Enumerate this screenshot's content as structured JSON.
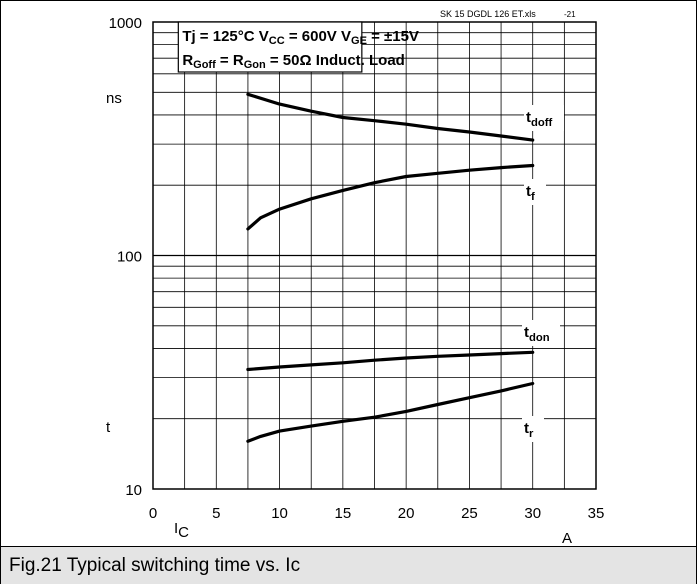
{
  "chart_data": {
    "type": "line",
    "file_label": "SK 15 DGDL 126 ET.xls",
    "fig_number": "-21",
    "conditions": {
      "line1": [
        "Tj = 125°C",
        "V",
        "CC",
        " = 600V",
        "V",
        "GE",
        " = ±15V"
      ],
      "line2": [
        "R",
        "Goff",
        " = R",
        "Gon",
        " = 50Ω",
        "Induct. Load"
      ]
    },
    "ylabel_unit": "ns",
    "ylabel_symbol": "t",
    "xlabel_symbol": "I",
    "xlabel_sub": "C",
    "xlabel_unit": "A",
    "x_ticks": [
      0,
      5,
      10,
      15,
      20,
      25,
      30,
      35
    ],
    "y_ticks": [
      10,
      100,
      1000
    ],
    "xlim": [
      0,
      35
    ],
    "ylim": [
      10,
      1000
    ],
    "yscale": "log",
    "grid": true,
    "series": [
      {
        "name": "t_doff",
        "label_main": "t",
        "label_sub": "doff",
        "x": [
          7.5,
          10,
          12.5,
          15,
          17.5,
          20,
          22.5,
          25,
          27.5,
          30
        ],
        "y": [
          490,
          445,
          415,
          390,
          378,
          365,
          350,
          338,
          325,
          312
        ]
      },
      {
        "name": "t_f",
        "label_main": "t",
        "label_sub": "f",
        "x": [
          7.5,
          8.5,
          10,
          12.5,
          15,
          17.5,
          20,
          22.5,
          25,
          27.5,
          30
        ],
        "y": [
          130,
          145,
          158,
          175,
          190,
          205,
          218,
          225,
          232,
          238,
          243
        ]
      },
      {
        "name": "t_don",
        "label_main": "t",
        "label_sub": "don",
        "x": [
          7.5,
          10,
          12.5,
          15,
          17.5,
          20,
          22.5,
          25,
          27.5,
          30
        ],
        "y": [
          32.5,
          33.3,
          34,
          34.7,
          35.6,
          36.4,
          37,
          37.5,
          38,
          38.5
        ]
      },
      {
        "name": "t_r",
        "label_main": "t",
        "label_sub": "r",
        "x": [
          7.5,
          8.5,
          10,
          12.5,
          15,
          17.5,
          20,
          22.5,
          25,
          27.5,
          30
        ],
        "y": [
          16,
          16.8,
          17.7,
          18.6,
          19.5,
          20.3,
          21.5,
          23,
          24.6,
          26.3,
          28.3
        ]
      }
    ]
  },
  "caption": "Fig.21 Typical switching time vs. Ic"
}
